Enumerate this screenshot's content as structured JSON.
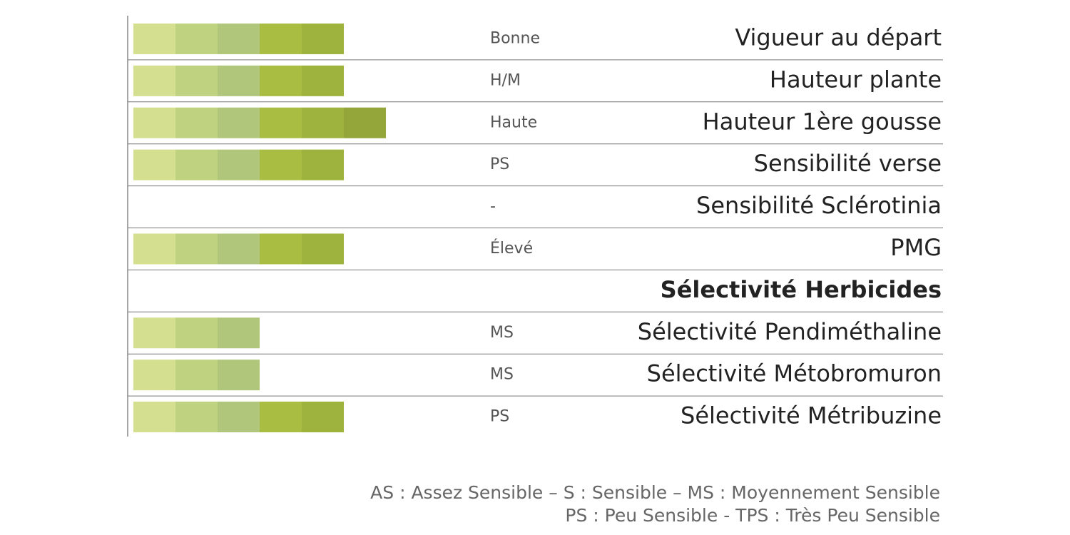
{
  "chart_data": {
    "type": "rating",
    "categories": [
      "Vigueur au départ",
      "Hauteur plante",
      "Hauteur 1ère gousse",
      "Sensibilité verse",
      "Sensibilité Sclérotinia",
      "PMG",
      "Sélectivité Herbicides",
      "Sélectivité Pendiméthaline",
      "Sélectivité Métobromuron",
      "Sélectivité Métribuzine"
    ],
    "values": [
      5,
      5,
      6,
      5,
      null,
      5,
      null,
      3,
      3,
      5
    ],
    "ratings": [
      "Bonne",
      "H/M",
      "Haute",
      "PS",
      "-",
      "Élevé",
      null,
      "MS",
      "MS",
      "PS"
    ],
    "header_index": 6,
    "xlim": [
      0,
      6
    ],
    "colors": [
      "#d4e08f",
      "#bfd27f",
      "#b0c67a",
      "#a9bd43",
      "#9db33d",
      "#94a53a"
    ],
    "notes": [
      "AS : Assez Sensible –  S : Sensible – MS : Moyennement Sensible",
      "PS : Peu Sensible - TPS : Très Peu Sensible"
    ]
  }
}
